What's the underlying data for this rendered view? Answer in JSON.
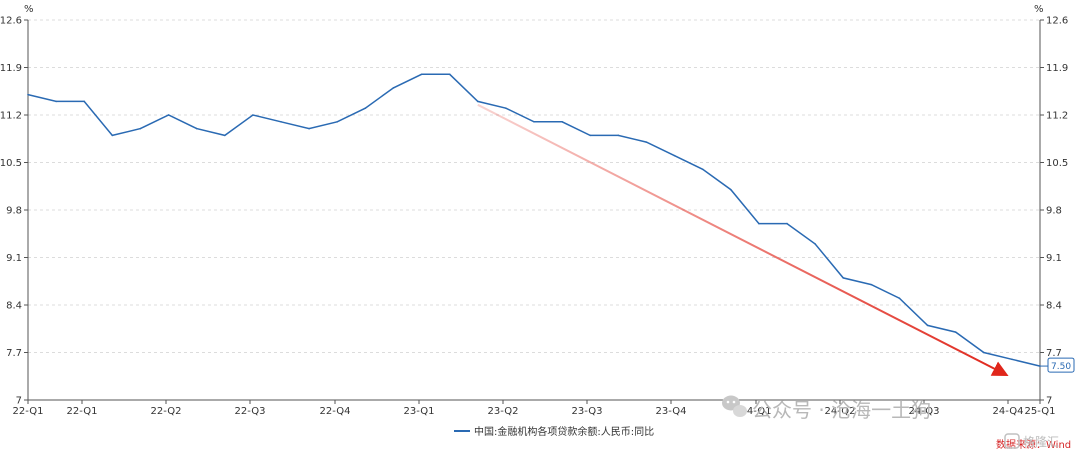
{
  "chart_data": {
    "type": "line",
    "unit_left": "%",
    "unit_right": "%",
    "y_ticks": [
      "12.6",
      "11.9",
      "11.2",
      "10.5",
      "9.8",
      "9.1",
      "8.4",
      "7.7",
      "7"
    ],
    "ylim": [
      7,
      12.6
    ],
    "x_tick_labels": [
      "22-Q1",
      "22-Q1",
      "22-Q2",
      "22-Q3",
      "22-Q4",
      "23-Q1",
      "23-Q2",
      "23-Q3",
      "23-Q4",
      "24-Q1",
      "24-Q2",
      "24-Q3",
      "24-Q4",
      "25-Q1"
    ],
    "series": [
      {
        "name": "中国:金融机构各项贷款余额:人民币:同比",
        "color": "#2a6ab3",
        "values": [
          11.5,
          11.4,
          11.4,
          10.9,
          11.0,
          11.2,
          11.0,
          10.9,
          11.2,
          11.1,
          11.0,
          11.1,
          11.3,
          11.6,
          11.8,
          11.8,
          11.4,
          11.3,
          11.1,
          11.1,
          10.9,
          10.9,
          10.8,
          10.6,
          10.4,
          10.1,
          9.6,
          9.6,
          9.3,
          8.8,
          8.7,
          8.5,
          8.1,
          8.0,
          7.7,
          7.6,
          7.5
        ]
      }
    ],
    "last_value_label": "7.50",
    "trend_arrow": {
      "color": "#e0261b",
      "from": {
        "index": 16,
        "value": 11.35
      },
      "to": {
        "index": 36,
        "value": 7.44
      }
    },
    "grid": "horizontal-dashed",
    "legend_placement": "bottom-center"
  },
  "source_text": "数据来源：Wind",
  "watermark_text": "公众号 · 沧海一土狗",
  "logo_text": "格隆汇"
}
